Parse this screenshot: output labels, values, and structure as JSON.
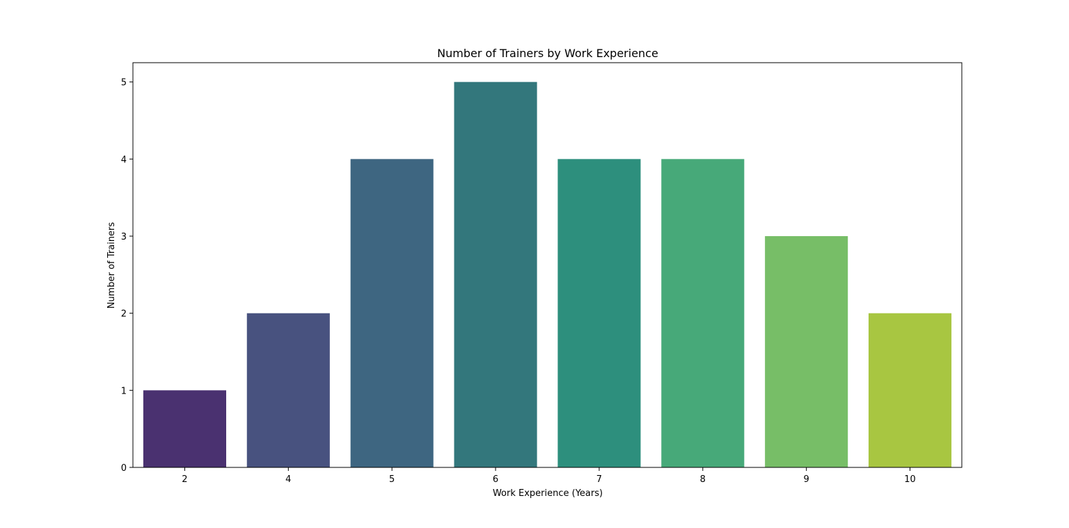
{
  "chart_data": {
    "type": "bar",
    "title": "Number of Trainers by Work Experience",
    "xlabel": "Work Experience (Years)",
    "ylabel": "Number of Trainers",
    "categories": [
      "2",
      "4",
      "5",
      "6",
      "7",
      "8",
      "9",
      "10"
    ],
    "values": [
      1,
      2,
      4,
      5,
      4,
      4,
      3,
      2
    ],
    "colors": [
      "#4a3170",
      "#48527f",
      "#3e6681",
      "#33777c",
      "#2d8f7d",
      "#47a979",
      "#77be67",
      "#a8c641"
    ],
    "ylim": [
      0,
      5.25
    ],
    "yticks": [
      "0",
      "1",
      "2",
      "3",
      "4",
      "5"
    ],
    "grid": false,
    "legend": "none"
  }
}
